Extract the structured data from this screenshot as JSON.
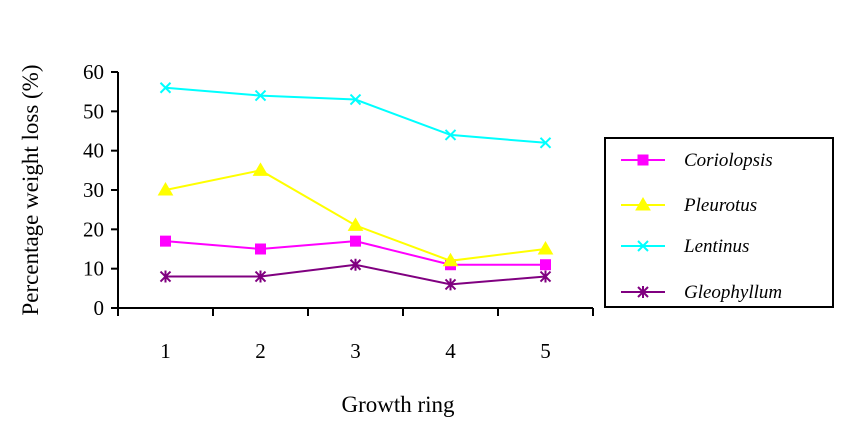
{
  "chart_data": {
    "type": "line",
    "title": "",
    "xlabel": "Growth ring",
    "ylabel": "Percentage weight loss (%)",
    "categories": [
      "1",
      "2",
      "3",
      "4",
      "5"
    ],
    "y_ticks": [
      "0",
      "10",
      "20",
      "30",
      "40",
      "50",
      "60"
    ],
    "ylim": [
      0,
      60
    ],
    "grid": false,
    "legend_position": "right",
    "series": [
      {
        "name": "Coriolopsis",
        "values": [
          17,
          15,
          17,
          11,
          11
        ],
        "color": "#ff00ff",
        "marker": "square"
      },
      {
        "name": "Pleurotus",
        "values": [
          30,
          35,
          21,
          12,
          15
        ],
        "color": "#ffff00",
        "marker": "triangle"
      },
      {
        "name": "Lentinus",
        "values": [
          56,
          54,
          53,
          44,
          42
        ],
        "color": "#00ffff",
        "marker": "x"
      },
      {
        "name": "Gleophyllum",
        "values": [
          8,
          8,
          11,
          6,
          8
        ],
        "color": "#800080",
        "marker": "asterisk"
      }
    ]
  }
}
